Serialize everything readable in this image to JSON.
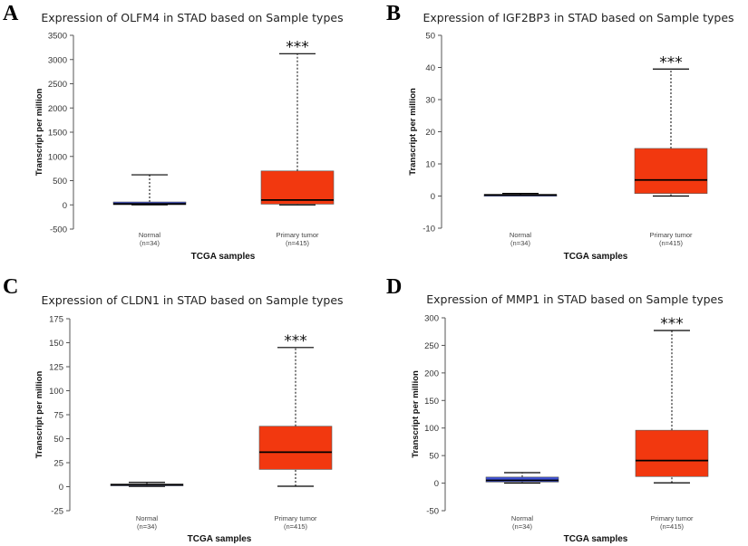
{
  "chart_data": [
    {
      "panel": "A",
      "type": "boxplot",
      "title": "Expression of OLFM4 in STAD based on Sample types",
      "ylabel": "Transcript per million",
      "xlabel": "TCGA samples",
      "ylim": [
        -500,
        3500
      ],
      "yticks": [
        -500,
        0,
        500,
        1000,
        1500,
        2000,
        2500,
        3000,
        3500
      ],
      "significance": "***",
      "groups": [
        {
          "name": "Normal",
          "n_label": "(n=34)",
          "color": "#3f51d6",
          "min": 0,
          "q1": 5,
          "median": 20,
          "q3": 60,
          "max": 620
        },
        {
          "name": "Primary tumor",
          "n_label": "(n=415)",
          "color": "#f2380f",
          "min": 0,
          "q1": 15,
          "median": 100,
          "q3": 700,
          "max": 3120
        }
      ]
    },
    {
      "panel": "B",
      "type": "boxplot",
      "title": "Expression of IGF2BP3 in STAD based on Sample types",
      "ylabel": "Transcript per million",
      "xlabel": "TCGA samples",
      "ylim": [
        -10,
        50
      ],
      "yticks": [
        -10,
        0,
        10,
        20,
        30,
        40,
        50
      ],
      "significance": "***",
      "groups": [
        {
          "name": "Normal",
          "n_label": "(n=34)",
          "color": "#3f51d6",
          "min": 0.1,
          "q1": 0.2,
          "median": 0.35,
          "q3": 0.5,
          "max": 0.8
        },
        {
          "name": "Primary tumor",
          "n_label": "(n=415)",
          "color": "#f2380f",
          "min": 0,
          "q1": 0.8,
          "median": 5,
          "q3": 14.8,
          "max": 39.5
        }
      ]
    },
    {
      "panel": "C",
      "type": "boxplot",
      "title": "Expression of CLDN1 in STAD based on Sample types",
      "ylabel": "Transcript per million",
      "xlabel": "TCGA samples",
      "ylim": [
        -25,
        175
      ],
      "yticks": [
        -25,
        0,
        25,
        50,
        75,
        100,
        125,
        150,
        175
      ],
      "significance": "***",
      "groups": [
        {
          "name": "Normal",
          "n_label": "(n=34)",
          "color": "#3f51d6",
          "min": 0.3,
          "q1": 1.2,
          "median": 2,
          "q3": 2.8,
          "max": 4.5
        },
        {
          "name": "Primary tumor",
          "n_label": "(n=415)",
          "color": "#f2380f",
          "min": 0.5,
          "q1": 18,
          "median": 36,
          "q3": 63,
          "max": 145
        }
      ]
    },
    {
      "panel": "D",
      "type": "boxplot",
      "title": "Expression of MMP1 in STAD based on Sample types",
      "ylabel": "Transcript per million",
      "xlabel": "TCGA samples",
      "ylim": [
        -50,
        300
      ],
      "yticks": [
        -50,
        0,
        50,
        100,
        150,
        200,
        250,
        300
      ],
      "significance": "***",
      "groups": [
        {
          "name": "Normal",
          "n_label": "(n=34)",
          "color": "#3f51d6",
          "min": 0,
          "q1": 2,
          "median": 5,
          "q3": 11,
          "max": 19
        },
        {
          "name": "Primary tumor",
          "n_label": "(n=415)",
          "color": "#f2380f",
          "min": 0.5,
          "q1": 12,
          "median": 41,
          "q3": 96,
          "max": 277
        }
      ]
    }
  ]
}
